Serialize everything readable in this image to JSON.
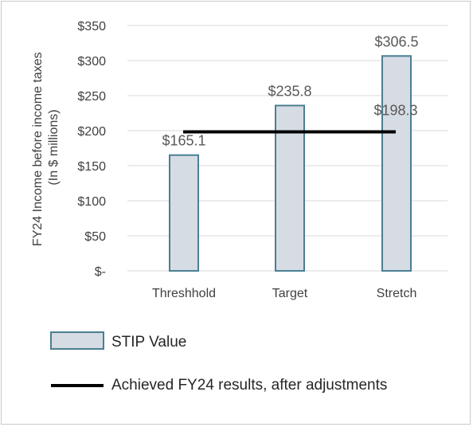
{
  "chart_data": {
    "type": "bar",
    "ylabel": [
      "FY24 Income before income taxes",
      "(In $ millions)"
    ],
    "categories": [
      "Threshhold",
      "Target",
      "Stretch"
    ],
    "values": [
      165.1,
      235.8,
      306.5
    ],
    "value_labels": [
      "$165.1",
      "$235.8",
      "$306.5"
    ],
    "line": {
      "name": "Achieved FY24 results, after adjustments",
      "value": 198.3,
      "label": "$198.3"
    },
    "series_name": "STIP Value",
    "ylim": [
      0,
      350
    ],
    "yticks": [
      0,
      50,
      100,
      150,
      200,
      250,
      300,
      350
    ],
    "ytick_labels": [
      "$-",
      "$50",
      "$100",
      "$150",
      "$200",
      "$250",
      "$300",
      "$350"
    ],
    "gridlines": true,
    "legend_position": "bottom",
    "colors": {
      "bar_fill": "#d6dce4",
      "bar_stroke": "#4a7f92",
      "line": "#000000",
      "grid": "#d9d9d9"
    }
  }
}
